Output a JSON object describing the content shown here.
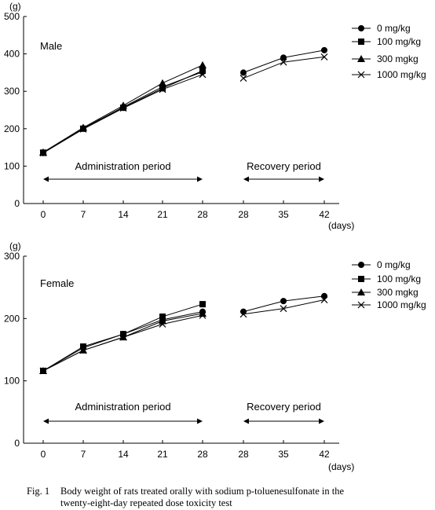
{
  "chart_data": [
    {
      "type": "line",
      "panel_label": "Male",
      "y_unit": "(g)",
      "x_unit": "(days)",
      "ylim": [
        0,
        500
      ],
      "yticks": [
        "0",
        "100",
        "200",
        "300",
        "400",
        "500"
      ],
      "x_positions": [
        "0",
        "7",
        "14",
        "21",
        "28",
        "28",
        "35",
        "42"
      ],
      "periods": [
        {
          "label": "Administration period",
          "from": 0,
          "to": 4
        },
        {
          "label": "Recovery period",
          "from": 5,
          "to": 7
        }
      ],
      "series": [
        {
          "name": "0 mg/kg",
          "marker": "circle",
          "administration": [
            135,
            201,
            258,
            312,
            352
          ],
          "recovery": [
            350,
            390,
            410
          ]
        },
        {
          "name": "100 mg/kg",
          "marker": "square",
          "administration": [
            136,
            200,
            256,
            308,
            355
          ],
          "recovery": [
            null,
            null,
            null
          ]
        },
        {
          "name": "300 mgkg",
          "marker": "triangle",
          "administration": [
            137,
            203,
            262,
            322,
            370
          ],
          "recovery": [
            null,
            null,
            null
          ]
        },
        {
          "name": "1000 mg/kg",
          "marker": "x",
          "administration": [
            135,
            199,
            255,
            305,
            345
          ],
          "recovery": [
            335,
            378,
            392
          ]
        }
      ]
    },
    {
      "type": "line",
      "panel_label": "Female",
      "y_unit": "(g)",
      "x_unit": "(days)",
      "ylim": [
        0,
        300
      ],
      "yticks": [
        "0",
        "100",
        "200",
        "300"
      ],
      "x_positions": [
        "0",
        "7",
        "14",
        "21",
        "28",
        "28",
        "35",
        "42"
      ],
      "periods": [
        {
          "label": "Administration period",
          "from": 0,
          "to": 4
        },
        {
          "label": "Recovery period",
          "from": 5,
          "to": 7
        }
      ],
      "series": [
        {
          "name": "0 mg/kg",
          "marker": "circle",
          "administration": [
            116,
            153,
            175,
            198,
            211
          ],
          "recovery": [
            211,
            228,
            236
          ]
        },
        {
          "name": "100 mg/kg",
          "marker": "square",
          "administration": [
            116,
            155,
            175,
            203,
            223
          ],
          "recovery": [
            null,
            null,
            null
          ]
        },
        {
          "name": "300 mgkg",
          "marker": "triangle",
          "administration": [
            116,
            149,
            170,
            196,
            208
          ],
          "recovery": [
            null,
            null,
            null
          ]
        },
        {
          "name": "1000 mg/kg",
          "marker": "x",
          "administration": [
            116,
            149,
            170,
            191,
            205
          ],
          "recovery": [
            207,
            216,
            230
          ]
        }
      ]
    }
  ],
  "caption": {
    "figure_number": "Fig. 1",
    "line1": "Body weight of rats treated orally with sodium p-toluenesulfonate in the",
    "line2": "twenty-eight-day repeated dose toxicity test"
  }
}
